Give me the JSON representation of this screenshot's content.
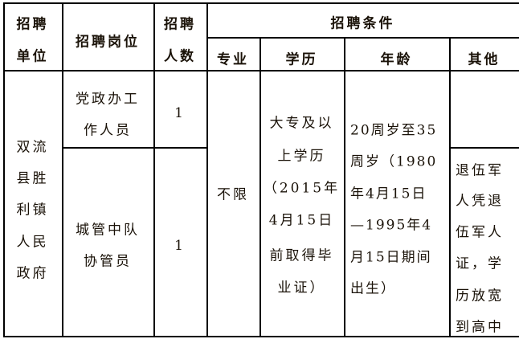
{
  "header": {
    "unit": [
      "招聘",
      "单位"
    ],
    "position": "招聘岗位",
    "count": [
      "招聘",
      "人数"
    ],
    "conditions": "招聘条件",
    "major": "专业",
    "education": "学历",
    "age": "年龄",
    "other": "其他"
  },
  "body": {
    "unit": [
      "双流",
      "县胜",
      "利镇",
      "人民",
      "政府"
    ],
    "rows": [
      {
        "position": [
          "党政办工",
          "作人员"
        ],
        "count": "1"
      },
      {
        "position": [
          "城管中队",
          "协管员"
        ],
        "count": "1"
      }
    ],
    "major": "不限",
    "education": [
      "大专及以",
      "上学历",
      "（2015年",
      "4月15日",
      "前取得毕",
      "业证）"
    ],
    "age": [
      "20周岁至35",
      "周岁（1980",
      "年4月15日",
      "—1995年4",
      "月15日期间",
      "出生）"
    ],
    "other": [
      "退伍军",
      "人凭退",
      "伍军人",
      "证，学",
      "历放宽",
      "到高中"
    ]
  }
}
